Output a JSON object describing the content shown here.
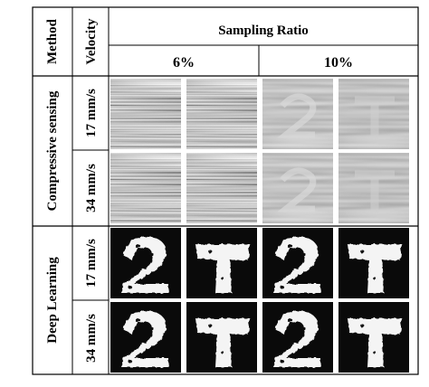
{
  "table": {
    "header": {
      "method": "Method",
      "velocity": "Velocity",
      "sampling_ratio": "Sampling Ratio",
      "ratios": [
        "6%",
        "10%"
      ]
    },
    "groups": [
      {
        "method": "Compressive sensing",
        "rows": [
          {
            "velocity": "17 mm/s",
            "cells": [
              "cs-noise-texture",
              "cs-noise-texture",
              "cs-blocky-digit-2",
              "cs-blocky-letter-T"
            ]
          },
          {
            "velocity": "34 mm/s",
            "cells": [
              "cs-noise-texture",
              "cs-noise-texture",
              "cs-blocky-digit-2",
              "cs-blocky-letter-T"
            ]
          }
        ]
      },
      {
        "method": "Deep Learning",
        "rows": [
          {
            "velocity": "17 mm/s",
            "cells": [
              "dl-digit-2",
              "dl-letter-T",
              "dl-digit-2",
              "dl-letter-T"
            ]
          },
          {
            "velocity": "34 mm/s",
            "cells": [
              "dl-digit-2",
              "dl-letter-T",
              "dl-digit-2",
              "dl-letter-T"
            ]
          }
        ]
      }
    ]
  },
  "colors": {
    "line": "#000000",
    "dark": "#0a0a0a",
    "light": "#f4f4f4"
  }
}
